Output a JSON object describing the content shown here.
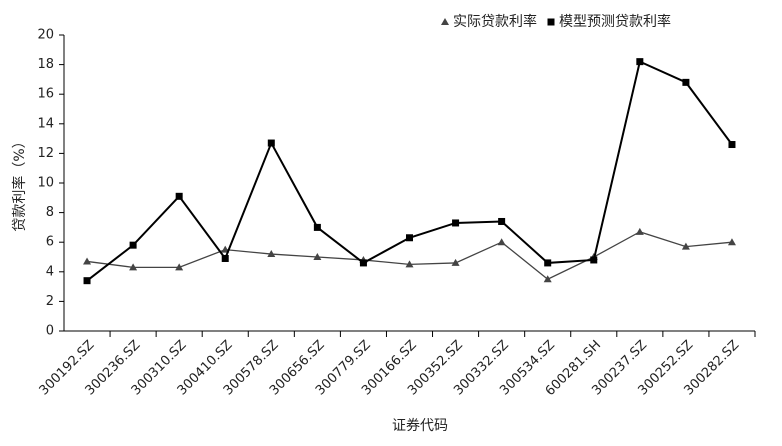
{
  "chart_data": {
    "type": "line",
    "x_label": "证券代码",
    "y_label": "贷款利率（%）",
    "categories": [
      "300192.SZ",
      "300236.SZ",
      "300310.SZ",
      "300410.SZ",
      "300578.SZ",
      "300656.SZ",
      "300779.SZ",
      "300166.SZ",
      "300352.SZ",
      "300332.SZ",
      "300534.SZ",
      "600281.SH",
      "300237.SZ",
      "300252.SZ",
      "300282.SZ"
    ],
    "series": [
      {
        "name": "实际贷款利率",
        "color": "#444444",
        "marker": "triangle",
        "values": [
          4.7,
          4.3,
          4.3,
          5.5,
          5.2,
          5.0,
          4.8,
          4.5,
          4.6,
          6.0,
          3.5,
          5.0,
          6.7,
          5.7,
          6.0
        ]
      },
      {
        "name": "模型预测贷款利率",
        "color": "#000000",
        "marker": "square",
        "values": [
          3.4,
          5.8,
          9.1,
          4.9,
          12.7,
          7.0,
          4.6,
          6.3,
          7.3,
          7.4,
          4.6,
          4.8,
          18.2,
          16.8,
          12.6
        ]
      }
    ],
    "ylim": [
      0,
      20
    ],
    "yticks": [
      0,
      2,
      4,
      6,
      8,
      10,
      12,
      14,
      16,
      18,
      20
    ],
    "grid": false,
    "legend": "top-right"
  }
}
